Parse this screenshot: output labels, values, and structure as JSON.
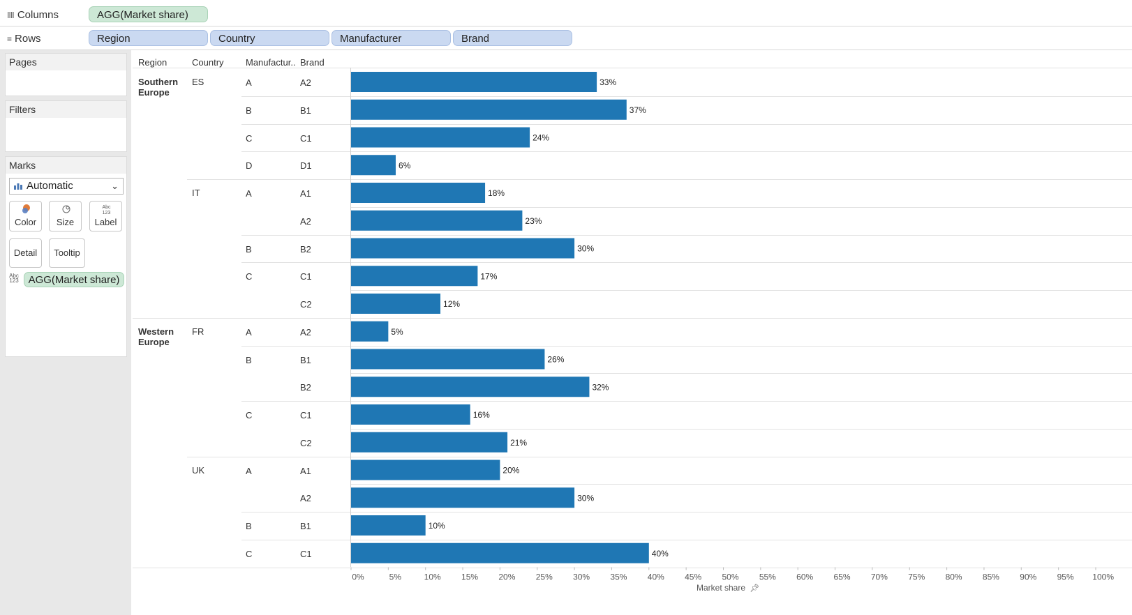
{
  "shelves": {
    "columns_label": "Columns",
    "rows_label": "Rows",
    "columns_pills": [
      "AGG(Market share)"
    ],
    "rows_pills": [
      "Region",
      "Country",
      "Manufacturer",
      "Brand"
    ]
  },
  "side_panel": {
    "pages_title": "Pages",
    "filters_title": "Filters",
    "marks_title": "Marks",
    "mark_type": "Automatic",
    "buttons": {
      "color": "Color",
      "size": "Size",
      "label": "Label",
      "detail": "Detail",
      "tooltip": "Tooltip"
    },
    "label_icon_text": "Abc\n123",
    "marks_field": "AGG(Market share)"
  },
  "view": {
    "headers": {
      "region": "Region",
      "country": "Country",
      "manufacturer": "Manufactur..",
      "brand": "Brand"
    },
    "axis_title": "Market share"
  },
  "chart_data": {
    "type": "bar",
    "orientation": "horizontal",
    "xlabel": "Market share",
    "xlim": [
      0,
      100
    ],
    "x_ticks": [
      "0%",
      "5%",
      "10%",
      "15%",
      "20%",
      "25%",
      "30%",
      "35%",
      "40%",
      "45%",
      "50%",
      "55%",
      "60%",
      "65%",
      "70%",
      "75%",
      "80%",
      "85%",
      "90%",
      "95%",
      "100%"
    ],
    "bar_color": "#1f77b4",
    "rows": [
      {
        "region": "Southern Europe",
        "country": "ES",
        "manufacturer": "A",
        "brand": "A2",
        "value": 33,
        "label": "33%"
      },
      {
        "region": "Southern Europe",
        "country": "ES",
        "manufacturer": "B",
        "brand": "B1",
        "value": 37,
        "label": "37%"
      },
      {
        "region": "Southern Europe",
        "country": "ES",
        "manufacturer": "C",
        "brand": "C1",
        "value": 24,
        "label": "24%"
      },
      {
        "region": "Southern Europe",
        "country": "ES",
        "manufacturer": "D",
        "brand": "D1",
        "value": 6,
        "label": "6%"
      },
      {
        "region": "Southern Europe",
        "country": "IT",
        "manufacturer": "A",
        "brand": "A1",
        "value": 18,
        "label": "18%"
      },
      {
        "region": "Southern Europe",
        "country": "IT",
        "manufacturer": "A",
        "brand": "A2",
        "value": 23,
        "label": "23%"
      },
      {
        "region": "Southern Europe",
        "country": "IT",
        "manufacturer": "B",
        "brand": "B2",
        "value": 30,
        "label": "30%"
      },
      {
        "region": "Southern Europe",
        "country": "IT",
        "manufacturer": "C",
        "brand": "C1",
        "value": 17,
        "label": "17%"
      },
      {
        "region": "Southern Europe",
        "country": "IT",
        "manufacturer": "C",
        "brand": "C2",
        "value": 12,
        "label": "12%"
      },
      {
        "region": "Western Europe",
        "country": "FR",
        "manufacturer": "A",
        "brand": "A2",
        "value": 5,
        "label": "5%"
      },
      {
        "region": "Western Europe",
        "country": "FR",
        "manufacturer": "B",
        "brand": "B1",
        "value": 26,
        "label": "26%"
      },
      {
        "region": "Western Europe",
        "country": "FR",
        "manufacturer": "B",
        "brand": "B2",
        "value": 32,
        "label": "32%"
      },
      {
        "region": "Western Europe",
        "country": "FR",
        "manufacturer": "C",
        "brand": "C1",
        "value": 16,
        "label": "16%"
      },
      {
        "region": "Western Europe",
        "country": "FR",
        "manufacturer": "C",
        "brand": "C2",
        "value": 21,
        "label": "21%"
      },
      {
        "region": "Western Europe",
        "country": "UK",
        "manufacturer": "A",
        "brand": "A1",
        "value": 20,
        "label": "20%"
      },
      {
        "region": "Western Europe",
        "country": "UK",
        "manufacturer": "A",
        "brand": "A2",
        "value": 30,
        "label": "30%"
      },
      {
        "region": "Western Europe",
        "country": "UK",
        "manufacturer": "B",
        "brand": "B1",
        "value": 10,
        "label": "10%"
      },
      {
        "region": "Western Europe",
        "country": "UK",
        "manufacturer": "C",
        "brand": "C1",
        "value": 40,
        "label": "40%"
      }
    ]
  }
}
